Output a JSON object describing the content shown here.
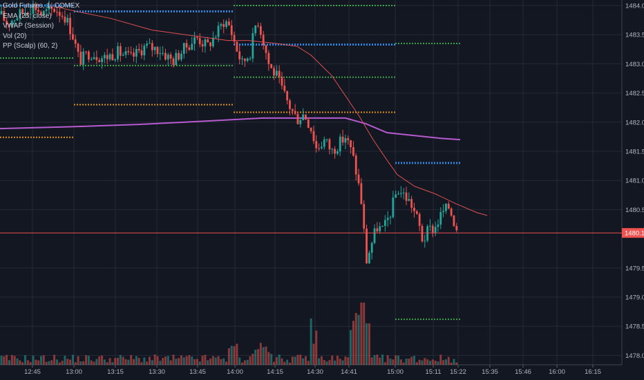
{
  "chart_data": {
    "type": "candlestick",
    "symbol_title": "Gold Futures, 1, COMEX",
    "indicators": [
      "EMA (25, close)",
      "VWAP (Session)",
      "Vol (20)",
      "PP (Scalp) (60, 2)"
    ],
    "y_ticks": [
      "1484.0",
      "1483.5",
      "1483.0",
      "1482.5",
      "1482.0",
      "1481.5",
      "1481.0",
      "1480.5",
      "1479.5",
      "1479.0",
      "1478.5",
      "1478.0"
    ],
    "y_tick_values": [
      1484.0,
      1483.5,
      1483.0,
      1482.5,
      1482.0,
      1481.5,
      1481.0,
      1480.5,
      1479.5,
      1479.0,
      1478.5,
      1478.0
    ],
    "x_ticks": [
      "12:45",
      "13:00",
      "13:15",
      "13:30",
      "13:45",
      "14:00",
      "14:15",
      "14:30",
      "14:41",
      "15:00",
      "15:11",
      "15:22",
      "15:35",
      "15:46",
      "16:00",
      "16:15"
    ],
    "ylim": [
      1477.95,
      1484.1
    ],
    "last_price_label": "1480.1",
    "last_price": 1480.1,
    "colors": {
      "background": "#131722",
      "grid": "#262a36",
      "up": "#26a69a",
      "down": "#ef5350",
      "ema": "#e05050",
      "vwap": "#b85ad0",
      "pivot_blue": "#2f86e0",
      "pivot_green": "#3fa34a",
      "pivot_orange": "#e0921f",
      "axis_text": "#b2b5be",
      "last_price_bg": "#ef5350"
    },
    "pivots": [
      {
        "color": "blue",
        "y": 1484.0,
        "x0": 0,
        "x1": 107
      },
      {
        "color": "blue",
        "y": 1483.9,
        "x0": 107,
        "x1": 338
      },
      {
        "color": "green",
        "y": 1484.0,
        "x0": 338,
        "x1": 572
      },
      {
        "color": "green",
        "y": 1483.35,
        "x0": 572,
        "x1": 666
      },
      {
        "color": "blue",
        "y": 1483.33,
        "x0": 338,
        "x1": 572
      },
      {
        "color": "green",
        "y": 1483.1,
        "x0": 0,
        "x1": 107
      },
      {
        "color": "green",
        "y": 1482.97,
        "x0": 107,
        "x1": 338
      },
      {
        "color": "green",
        "y": 1482.77,
        "x0": 338,
        "x1": 572
      },
      {
        "color": "orange",
        "y": 1482.3,
        "x0": 107,
        "x1": 338
      },
      {
        "color": "orange",
        "y": 1482.17,
        "x0": 338,
        "x1": 572
      },
      {
        "color": "orange",
        "y": 1481.74,
        "x0": 0,
        "x1": 107
      },
      {
        "color": "blue",
        "y": 1481.3,
        "x0": 572,
        "x1": 666
      },
      {
        "color": "green",
        "y": 1478.62,
        "x0": 572,
        "x1": 666
      }
    ],
    "vwap": [
      [
        0,
        1481.89
      ],
      [
        100,
        1481.92
      ],
      [
        200,
        1481.96
      ],
      [
        300,
        1482.02
      ],
      [
        380,
        1482.07
      ],
      [
        440,
        1482.07
      ],
      [
        500,
        1482.07
      ],
      [
        530,
        1481.97
      ],
      [
        560,
        1481.82
      ],
      [
        600,
        1481.77
      ],
      [
        640,
        1481.72
      ],
      [
        666,
        1481.7
      ]
    ],
    "ema": [
      [
        80,
        1483.98
      ],
      [
        110,
        1483.9
      ],
      [
        160,
        1483.78
      ],
      [
        220,
        1483.58
      ],
      [
        280,
        1483.48
      ],
      [
        330,
        1483.4
      ],
      [
        360,
        1483.4
      ],
      [
        400,
        1483.35
      ],
      [
        430,
        1483.3
      ],
      [
        450,
        1483.15
      ],
      [
        480,
        1482.8
      ],
      [
        500,
        1482.45
      ],
      [
        520,
        1482.1
      ],
      [
        540,
        1481.7
      ],
      [
        560,
        1481.35
      ],
      [
        575,
        1481.1
      ],
      [
        600,
        1480.9
      ],
      [
        630,
        1480.77
      ],
      [
        660,
        1480.6
      ],
      [
        690,
        1480.45
      ],
      [
        705,
        1480.4
      ]
    ],
    "candles_count": 173,
    "volume_peak_times": [
      "14:41",
      "14:46"
    ]
  }
}
